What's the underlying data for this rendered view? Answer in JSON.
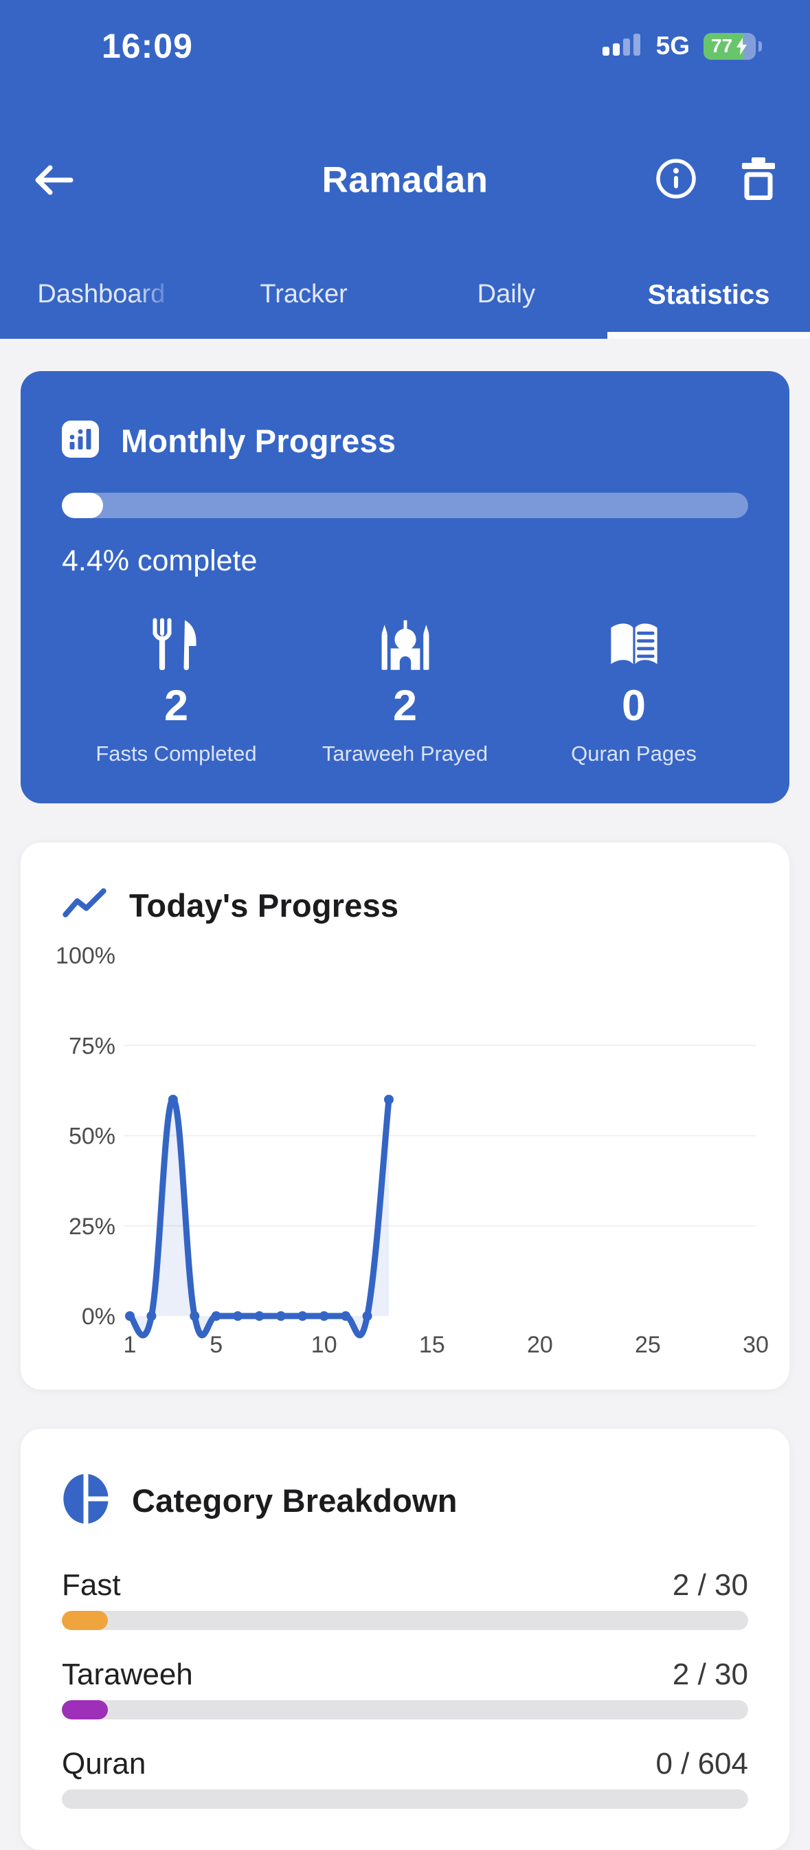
{
  "status_bar": {
    "time": "16:09",
    "network": "5G",
    "battery_percent": "77",
    "charging": true,
    "signal_bars_filled": 2,
    "signal_bars_total": 4
  },
  "header": {
    "title": "Ramadan"
  },
  "tabs": {
    "items": [
      {
        "label": "Dashboard",
        "active": false
      },
      {
        "label": "Tracker",
        "active": false
      },
      {
        "label": "Daily",
        "active": false
      },
      {
        "label": "Statistics",
        "active": true
      }
    ]
  },
  "monthly": {
    "title": "Monthly Progress",
    "percent": 4.4,
    "complete_text": "4.4% complete",
    "stats": [
      {
        "icon": "utensils-icon",
        "value": "2",
        "label": "Fasts Completed"
      },
      {
        "icon": "mosque-icon",
        "value": "2",
        "label": "Taraweeh Prayed"
      },
      {
        "icon": "open-book-icon",
        "value": "0",
        "label": "Quran Pages"
      }
    ]
  },
  "today": {
    "title": "Today's Progress"
  },
  "chart_data": {
    "type": "line",
    "title": "Today's Progress",
    "x": [
      1,
      2,
      3,
      4,
      5,
      6,
      7,
      8,
      9,
      10,
      11,
      12,
      13
    ],
    "series": [
      {
        "name": "daily-completion-percent",
        "values": [
          0,
          0,
          60,
          0,
          0,
          0,
          0,
          0,
          0,
          0,
          0,
          0,
          60
        ]
      }
    ],
    "xlabel": "",
    "ylabel": "",
    "xlim": [
      1,
      30
    ],
    "ylim": [
      0,
      100
    ],
    "x_ticks": [
      1,
      5,
      10,
      15,
      20,
      25,
      30
    ],
    "y_ticks": [
      {
        "label": "0%",
        "value": 0
      },
      {
        "label": "25%",
        "value": 25
      },
      {
        "label": "50%",
        "value": 50
      },
      {
        "label": "75%",
        "value": 75
      },
      {
        "label": "100%",
        "value": 100
      }
    ],
    "grid_y": [
      25,
      50,
      75
    ],
    "grid_color": "#F0F0F1",
    "axis_color": "#4D4D4F",
    "line_color": "#3465C5",
    "fill_color": "rgba(52,101,197,0.10)",
    "point_radius": 7,
    "legend": "none",
    "smoothing": "curved line with slight undershoot below 0% between points"
  },
  "categories": {
    "title": "Category Breakdown",
    "rows": [
      {
        "label": "Fast",
        "value": 2,
        "total": 30,
        "value_text": "2 / 30",
        "color": "#F0A43E"
      },
      {
        "label": "Taraweeh",
        "value": 2,
        "total": 30,
        "value_text": "2 / 30",
        "color": "#9D2FB8"
      },
      {
        "label": "Quran",
        "value": 0,
        "total": 604,
        "value_text": "0 / 604",
        "color": "#3765C6"
      }
    ]
  },
  "colors": {
    "header_blue": "#3765C6",
    "battery_green": "#68C56C",
    "page_background": "#F3F3F5",
    "chart_line": "#3465C5",
    "fast_bar": "#F0A43E",
    "taraweeh_bar": "#9D2FB8",
    "bar_track": "#E2E2E4"
  }
}
